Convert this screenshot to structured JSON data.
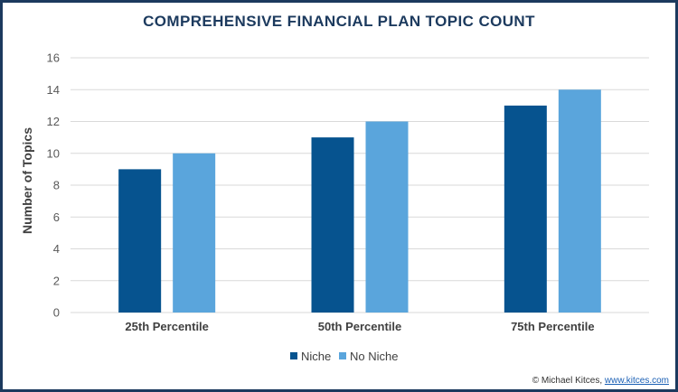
{
  "chart_data": {
    "type": "bar",
    "title": "COMPREHENSIVE FINANCIAL PLAN TOPIC COUNT",
    "xlabel": "",
    "ylabel": "Number of Topics",
    "categories": [
      "25th Percentile",
      "50th Percentile",
      "75th Percentile"
    ],
    "series": [
      {
        "name": "Niche",
        "values": [
          9,
          11,
          13
        ],
        "color": "#06538f"
      },
      {
        "name": "No Niche",
        "values": [
          10,
          12,
          14
        ],
        "color": "#5aa5dc"
      }
    ],
    "ylim": [
      0,
      16
    ],
    "yticks": [
      0,
      2,
      4,
      6,
      8,
      10,
      12,
      14,
      16
    ],
    "grid": true,
    "legend_position": "bottom-center"
  },
  "colors": {
    "title": "#1c3a5e",
    "border": "#1c3a5e",
    "grid": "#d9d9d9"
  },
  "credit": {
    "prefix": "© Michael Kitces, ",
    "link": "www.kitces.com"
  }
}
